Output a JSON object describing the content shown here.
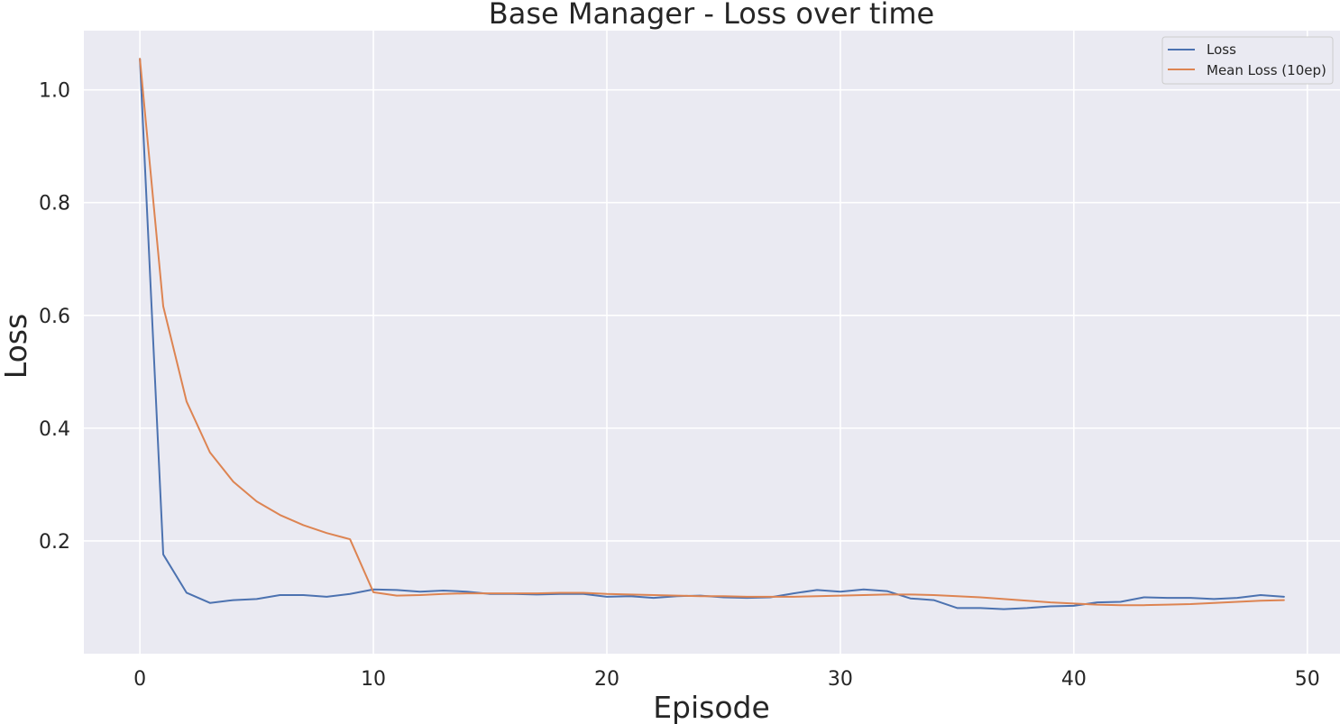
{
  "chart_data": {
    "type": "line",
    "title": "Base Manager - Loss over time",
    "xlabel": "Episode",
    "ylabel": "Loss",
    "xlim": [
      -2.4,
      51.4
    ],
    "ylim": [
      0.0,
      1.105
    ],
    "xticks": [
      0,
      10,
      20,
      30,
      40,
      50
    ],
    "yticks": [
      0.2,
      0.4,
      0.6,
      0.8,
      1.0
    ],
    "xtick_labels": [
      "0",
      "10",
      "20",
      "30",
      "40",
      "50"
    ],
    "ytick_labels": [
      "0.2",
      "0.4",
      "0.6",
      "0.8",
      "1.0"
    ],
    "grid": true,
    "background": "#eaeaf2",
    "legend_position": "top-right",
    "x": [
      0,
      1,
      2,
      3,
      4,
      5,
      6,
      7,
      8,
      9,
      10,
      11,
      12,
      13,
      14,
      15,
      16,
      17,
      18,
      19,
      20,
      21,
      22,
      23,
      24,
      25,
      26,
      27,
      28,
      29,
      30,
      31,
      32,
      33,
      34,
      35,
      36,
      37,
      38,
      39,
      40,
      41,
      42,
      43,
      44,
      45,
      46,
      47,
      48,
      49
    ],
    "series": [
      {
        "name": "Loss",
        "color": "#4c72b0",
        "values": [
          1.055,
          0.176,
          0.108,
          0.09,
          0.095,
          0.097,
          0.104,
          0.104,
          0.101,
          0.106,
          0.114,
          0.113,
          0.11,
          0.112,
          0.11,
          0.106,
          0.106,
          0.105,
          0.106,
          0.106,
          0.101,
          0.102,
          0.099,
          0.102,
          0.103,
          0.1,
          0.099,
          0.1,
          0.107,
          0.113,
          0.11,
          0.114,
          0.111,
          0.098,
          0.095,
          0.081,
          0.081,
          0.079,
          0.081,
          0.084,
          0.085,
          0.091,
          0.092,
          0.1,
          0.099,
          0.099,
          0.097,
          0.099,
          0.104,
          0.101
        ]
      },
      {
        "name": "Mean Loss (10ep)",
        "color": "#dd8452",
        "values": [
          1.055,
          0.616,
          0.447,
          0.357,
          0.305,
          0.27,
          0.246,
          0.228,
          0.214,
          0.203,
          0.109,
          0.103,
          0.104,
          0.106,
          0.107,
          0.107,
          0.107,
          0.107,
          0.108,
          0.108,
          0.106,
          0.105,
          0.104,
          0.103,
          0.102,
          0.102,
          0.101,
          0.101,
          0.101,
          0.102,
          0.103,
          0.104,
          0.105,
          0.105,
          0.104,
          0.102,
          0.1,
          0.097,
          0.094,
          0.091,
          0.089,
          0.087,
          0.086,
          0.086,
          0.087,
          0.088,
          0.09,
          0.092,
          0.094,
          0.095
        ]
      }
    ]
  }
}
